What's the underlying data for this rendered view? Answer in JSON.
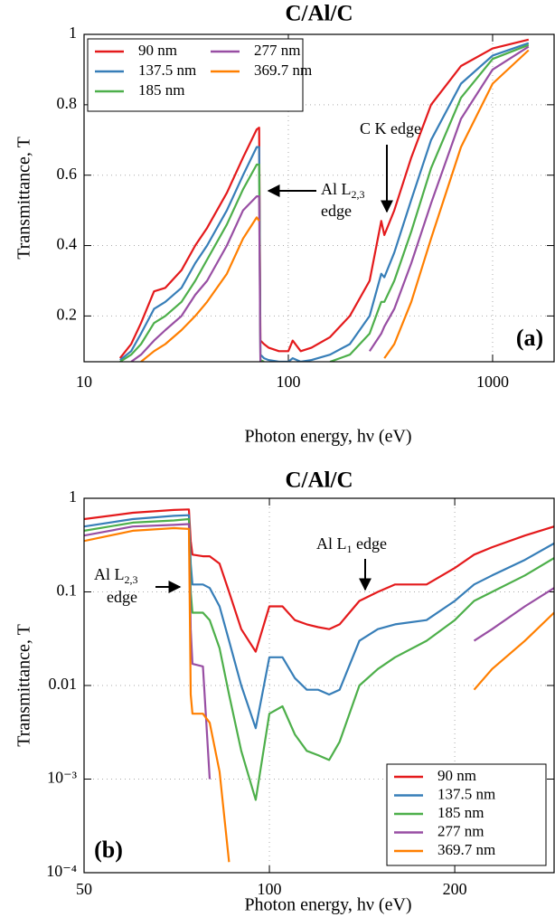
{
  "chart_data": [
    {
      "type": "line",
      "title": "C/Al/C",
      "x_label": "Photon energy, hν (eV)",
      "y_label": "Transmittance, T",
      "panel_label": "(a)",
      "x_scale": "log",
      "y_scale": "linear",
      "grid": true,
      "legend_position": "upper left",
      "legend_columns": 2,
      "xlim": [
        10,
        2000
      ],
      "ylim": [
        0.07,
        1
      ],
      "xticks": [
        10,
        100,
        1000
      ],
      "yticks": [
        0.2,
        0.4,
        0.6,
        0.8,
        1
      ],
      "x": [
        15,
        17,
        19,
        22,
        25,
        30,
        35,
        40,
        50,
        60,
        70,
        72,
        73,
        76,
        80,
        90,
        100,
        105,
        115,
        130,
        160,
        200,
        250,
        285,
        295,
        330,
        400,
        500,
        700,
        1000,
        1500
      ],
      "series": [
        {
          "name": "90 nm",
          "color": "#e41a1c",
          "values": [
            0.08,
            0.12,
            0.18,
            0.27,
            0.28,
            0.33,
            0.4,
            0.45,
            0.55,
            0.65,
            0.73,
            0.735,
            0.13,
            0.12,
            0.11,
            0.1,
            0.1,
            0.13,
            0.1,
            0.11,
            0.14,
            0.2,
            0.3,
            0.47,
            0.43,
            0.5,
            0.65,
            0.8,
            0.91,
            0.96,
            0.985
          ]
        },
        {
          "name": "137.5 nm",
          "color": "#377eb8",
          "values": [
            0.075,
            0.1,
            0.15,
            0.22,
            0.24,
            0.28,
            0.35,
            0.4,
            0.5,
            0.6,
            0.68,
            0.68,
            0.09,
            0.08,
            0.075,
            0.07,
            0.07,
            0.08,
            0.07,
            0.075,
            0.09,
            0.12,
            0.2,
            0.32,
            0.31,
            0.38,
            0.53,
            0.7,
            0.86,
            0.94,
            0.975
          ]
        },
        {
          "name": "185 nm",
          "color": "#4daf4a",
          "values": [
            0.07,
            0.09,
            0.12,
            0.18,
            0.2,
            0.24,
            0.3,
            0.36,
            0.46,
            0.56,
            0.63,
            0.63,
            0.075,
            0.07,
            null,
            null,
            null,
            null,
            null,
            null,
            0.07,
            0.09,
            0.15,
            0.24,
            0.24,
            0.3,
            0.44,
            0.62,
            0.82,
            0.93,
            0.97
          ]
        },
        {
          "name": "277 nm",
          "color": "#984ea3",
          "values": [
            null,
            0.07,
            0.09,
            0.13,
            0.16,
            0.2,
            0.26,
            0.3,
            0.4,
            0.5,
            0.54,
            0.54,
            0.07,
            null,
            null,
            null,
            null,
            null,
            null,
            null,
            null,
            null,
            0.1,
            0.15,
            0.17,
            0.22,
            0.35,
            0.52,
            0.76,
            0.9,
            0.965
          ]
        },
        {
          "name": "369.7 nm",
          "color": "#ff7f00",
          "values": [
            null,
            null,
            0.07,
            0.1,
            0.12,
            0.16,
            0.2,
            0.24,
            0.32,
            0.42,
            0.48,
            0.47,
            null,
            null,
            null,
            null,
            null,
            null,
            null,
            null,
            null,
            null,
            null,
            null,
            0.08,
            0.12,
            0.24,
            0.42,
            0.68,
            0.86,
            0.955
          ]
        }
      ],
      "annotations": [
        {
          "label": "C K edge"
        },
        {
          "label": "Al L",
          "subscript": "2,3",
          "line2": "edge"
        }
      ]
    },
    {
      "type": "line",
      "title": "C/Al/C",
      "x_label": "Photon energy, hν (eV)",
      "y_label": "Transmittance, T",
      "panel_label": "(b)",
      "x_scale": "log",
      "y_scale": "log",
      "grid": true,
      "legend_position": "lower right",
      "legend_columns": 1,
      "xlim": [
        50,
        290
      ],
      "ylim": [
        0.0001,
        1
      ],
      "xticks": [
        50,
        100,
        200
      ],
      "yticks": [
        {
          "value": 0.0001,
          "label": "10⁻⁴"
        },
        {
          "value": 0.001,
          "label": "10⁻³"
        },
        0.01,
        0.1,
        1
      ],
      "x": [
        50,
        60,
        70,
        74,
        74.5,
        75,
        78,
        80,
        83,
        86,
        90,
        95,
        100,
        105,
        110,
        115,
        120,
        125,
        130,
        140,
        150,
        160,
        180,
        200,
        215,
        230,
        260,
        290
      ],
      "series": [
        {
          "name": "90 nm",
          "color": "#e41a1c",
          "values": [
            0.6,
            0.7,
            0.75,
            0.76,
            0.35,
            0.25,
            0.24,
            0.24,
            0.2,
            0.1,
            0.04,
            0.023,
            0.07,
            0.07,
            0.05,
            0.045,
            0.042,
            0.04,
            0.045,
            0.08,
            0.1,
            0.12,
            0.12,
            0.18,
            0.25,
            0.3,
            0.4,
            0.5
          ]
        },
        {
          "name": "137.5 nm",
          "color": "#377eb8",
          "values": [
            0.5,
            0.6,
            0.65,
            0.66,
            0.2,
            0.12,
            0.12,
            0.11,
            0.07,
            0.03,
            0.01,
            0.0035,
            0.02,
            0.02,
            0.012,
            0.009,
            0.009,
            0.008,
            0.009,
            0.03,
            0.04,
            0.045,
            0.05,
            0.08,
            0.12,
            0.15,
            0.22,
            0.33
          ]
        },
        {
          "name": "185 nm",
          "color": "#4daf4a",
          "values": [
            0.45,
            0.55,
            0.58,
            0.6,
            0.1,
            0.06,
            0.06,
            0.05,
            0.025,
            0.008,
            0.002,
            0.0006,
            0.005,
            0.006,
            0.003,
            0.002,
            0.0018,
            0.0016,
            0.0025,
            0.01,
            0.015,
            0.02,
            0.03,
            0.05,
            0.08,
            0.1,
            0.15,
            0.23
          ]
        },
        {
          "name": "277 nm",
          "color": "#984ea3",
          "values": [
            0.4,
            0.5,
            0.52,
            0.53,
            0.04,
            0.017,
            0.016,
            0.001,
            null,
            null,
            null,
            null,
            null,
            null,
            null,
            null,
            null,
            null,
            null,
            null,
            null,
            null,
            null,
            null,
            0.03,
            0.04,
            0.07,
            0.11
          ]
        },
        {
          "name": "369.7 nm",
          "color": "#ff7f00",
          "values": [
            0.35,
            0.45,
            0.48,
            0.47,
            0.008,
            0.005,
            0.005,
            0.004,
            0.0012,
            0.00013,
            null,
            null,
            null,
            null,
            null,
            null,
            null,
            null,
            null,
            null,
            null,
            null,
            null,
            null,
            0.009,
            0.015,
            0.03,
            0.06
          ]
        }
      ],
      "annotations": [
        {
          "label": "Al L",
          "subscript": "1",
          "line2": " edge"
        },
        {
          "label": "Al L",
          "subscript": "2,3",
          "line2": "edge"
        }
      ]
    }
  ]
}
